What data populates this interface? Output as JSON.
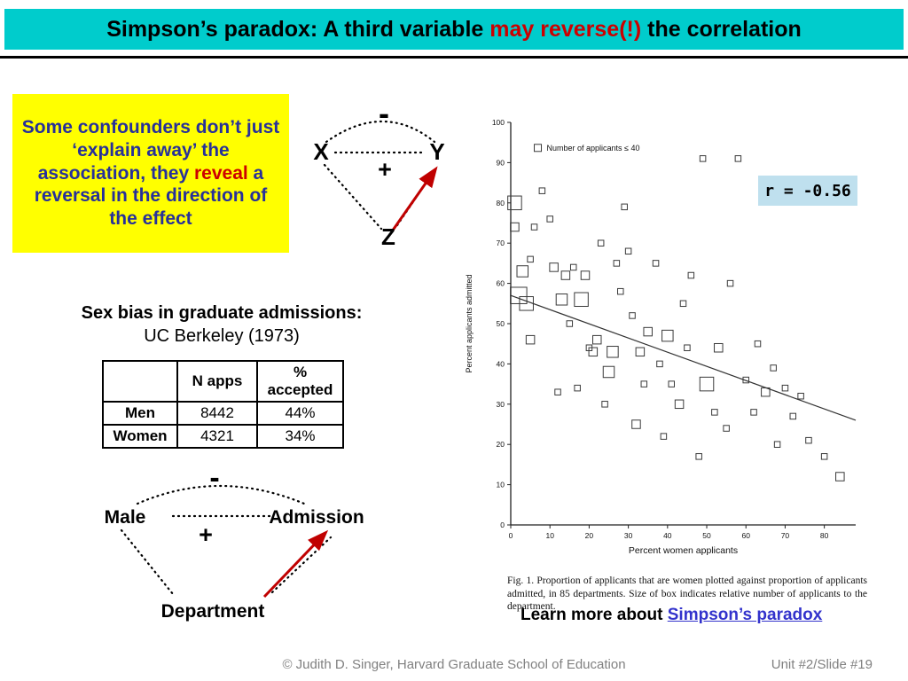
{
  "colors": {
    "titlebar_bg": "#00CCCC",
    "highlight_red": "#CC0000",
    "confounder_bg": "#FFFF00",
    "confounder_text": "#27309A",
    "arrow_red": "#C00000",
    "r_box_bg": "#BFE0EE",
    "link_blue": "#3333CC",
    "footer_gray": "#808080"
  },
  "title": {
    "prefix": "Simpson’s paradox: A third variable ",
    "highlight": "may reverse(!)",
    "suffix": " the correlation"
  },
  "confounder_box": {
    "part1": "Some confounders don’t just ‘explain away’ the association, they ",
    "highlight": "reveal",
    "part2": " a reversal in the direction of the effect"
  },
  "diagram_xyz": {
    "minus": "-",
    "plus": "+",
    "left": "X",
    "right": "Y",
    "bottom": "Z"
  },
  "admissions": {
    "heading_bold": "Sex bias in graduate admissions:",
    "heading_sub": "UC Berkeley (1973)",
    "table": {
      "headers": [
        "",
        "N apps",
        "% accepted"
      ],
      "rows": [
        [
          "Men",
          "8442",
          "44%"
        ],
        [
          "Women",
          "4321",
          "34%"
        ]
      ]
    }
  },
  "diagram_admissions": {
    "minus": "-",
    "plus": "+",
    "left": "Male",
    "right": "Admission",
    "bottom": "Department"
  },
  "figure": {
    "r_label": "r = -0.56",
    "caption": "Fig. 1. Proportion of applicants that are women plotted against proportion of applicants admitted, in 85 departments. Size of box indicates relative number of applicants to the department."
  },
  "learn_more": {
    "prefix": "Learn more about ",
    "link_text": "Simpson’s paradox"
  },
  "footer": {
    "copyright": "© Judith D. Singer, Harvard Graduate School of Education",
    "slide": "Unit #2/Slide #19"
  },
  "chart_data": {
    "type": "scatter",
    "title": "",
    "xlabel": "Percent women applicants",
    "ylabel": "Percent applicants admitted",
    "legend": "Number of applicants ≤ 40",
    "xlim": [
      0,
      88
    ],
    "ylim": [
      0,
      100
    ],
    "xticks": [
      0,
      10,
      20,
      30,
      40,
      50,
      60,
      70,
      80
    ],
    "yticks": [
      0,
      10,
      20,
      30,
      40,
      50,
      60,
      70,
      80,
      90,
      100
    ],
    "r": -0.56,
    "regression_line": {
      "x": [
        0,
        88
      ],
      "y": [
        57,
        26
      ]
    },
    "points": [
      [
        1,
        80,
        4
      ],
      [
        1,
        74,
        2
      ],
      [
        2,
        57,
        5
      ],
      [
        3,
        63,
        3
      ],
      [
        4,
        55,
        4
      ],
      [
        5,
        66,
        1
      ],
      [
        5,
        46,
        2
      ],
      [
        6,
        74,
        1
      ],
      [
        8,
        83,
        1
      ],
      [
        10,
        76,
        1
      ],
      [
        11,
        64,
        2
      ],
      [
        12,
        33,
        1
      ],
      [
        13,
        56,
        3
      ],
      [
        14,
        62,
        2
      ],
      [
        15,
        50,
        1
      ],
      [
        16,
        64,
        1
      ],
      [
        17,
        34,
        1
      ],
      [
        18,
        56,
        4
      ],
      [
        19,
        62,
        2
      ],
      [
        20,
        44,
        1
      ],
      [
        21,
        43,
        2
      ],
      [
        22,
        46,
        2
      ],
      [
        23,
        70,
        1
      ],
      [
        24,
        30,
        1
      ],
      [
        25,
        38,
        3
      ],
      [
        26,
        43,
        3
      ],
      [
        27,
        65,
        1
      ],
      [
        28,
        58,
        1
      ],
      [
        29,
        79,
        1
      ],
      [
        30,
        68,
        1
      ],
      [
        31,
        52,
        1
      ],
      [
        32,
        25,
        2
      ],
      [
        33,
        43,
        2
      ],
      [
        34,
        35,
        1
      ],
      [
        35,
        48,
        2
      ],
      [
        37,
        65,
        1
      ],
      [
        38,
        40,
        1
      ],
      [
        39,
        22,
        1
      ],
      [
        40,
        47,
        3
      ],
      [
        41,
        35,
        1
      ],
      [
        43,
        30,
        2
      ],
      [
        44,
        55,
        1
      ],
      [
        45,
        44,
        1
      ],
      [
        46,
        62,
        1
      ],
      [
        48,
        17,
        1
      ],
      [
        49,
        91,
        1
      ],
      [
        50,
        35,
        4
      ],
      [
        52,
        28,
        1
      ],
      [
        53,
        44,
        2
      ],
      [
        55,
        24,
        1
      ],
      [
        56,
        60,
        1
      ],
      [
        58,
        91,
        1
      ],
      [
        60,
        36,
        1
      ],
      [
        62,
        28,
        1
      ],
      [
        63,
        45,
        1
      ],
      [
        65,
        33,
        2
      ],
      [
        67,
        39,
        1
      ],
      [
        68,
        20,
        1
      ],
      [
        70,
        34,
        1
      ],
      [
        72,
        27,
        1
      ],
      [
        74,
        32,
        1
      ],
      [
        76,
        21,
        1
      ],
      [
        80,
        17,
        1
      ],
      [
        84,
        12,
        2
      ]
    ]
  }
}
